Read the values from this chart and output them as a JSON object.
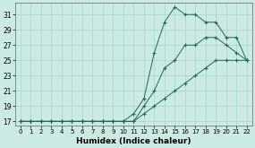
{
  "background_color": "#cceae4",
  "grid_color": "#a8d5cc",
  "line_color": "#1a6b5a",
  "xlabel": "Humidex (Indice chaleur)",
  "ylim": [
    16.5,
    32.5
  ],
  "xlim": [
    -0.5,
    22.5
  ],
  "yticks": [
    17,
    19,
    21,
    23,
    25,
    27,
    29,
    31
  ],
  "xticks": [
    0,
    1,
    2,
    3,
    4,
    5,
    6,
    7,
    8,
    9,
    10,
    11,
    12,
    13,
    14,
    15,
    16,
    17,
    18,
    19,
    20,
    21,
    22
  ],
  "series": [
    {
      "x": [
        0,
        1,
        2,
        3,
        4,
        5,
        6,
        7,
        8,
        9,
        10,
        11,
        12,
        13,
        14,
        15,
        16,
        17,
        18,
        19,
        20,
        21,
        22
      ],
      "y": [
        17,
        17,
        17,
        17,
        17,
        17,
        17,
        17,
        17,
        17,
        17,
        18,
        20,
        26,
        30,
        32,
        31,
        31,
        30,
        30,
        28,
        28,
        25
      ]
    },
    {
      "x": [
        0,
        1,
        2,
        3,
        4,
        5,
        6,
        7,
        8,
        9,
        10,
        11,
        12,
        13,
        14,
        15,
        16,
        17,
        18,
        19,
        20,
        21,
        22
      ],
      "y": [
        17,
        17,
        17,
        17,
        17,
        17,
        17,
        17,
        17,
        17,
        17,
        17,
        19,
        21,
        24,
        25,
        27,
        27,
        28,
        28,
        27,
        26,
        25
      ]
    },
    {
      "x": [
        0,
        1,
        2,
        3,
        4,
        5,
        6,
        7,
        8,
        9,
        10,
        11,
        12,
        13,
        14,
        15,
        16,
        17,
        18,
        19,
        20,
        21,
        22
      ],
      "y": [
        17,
        17,
        17,
        17,
        17,
        17,
        17,
        17,
        17,
        17,
        17,
        17,
        18,
        19,
        20,
        21,
        22,
        23,
        24,
        25,
        25,
        25,
        25
      ]
    }
  ]
}
